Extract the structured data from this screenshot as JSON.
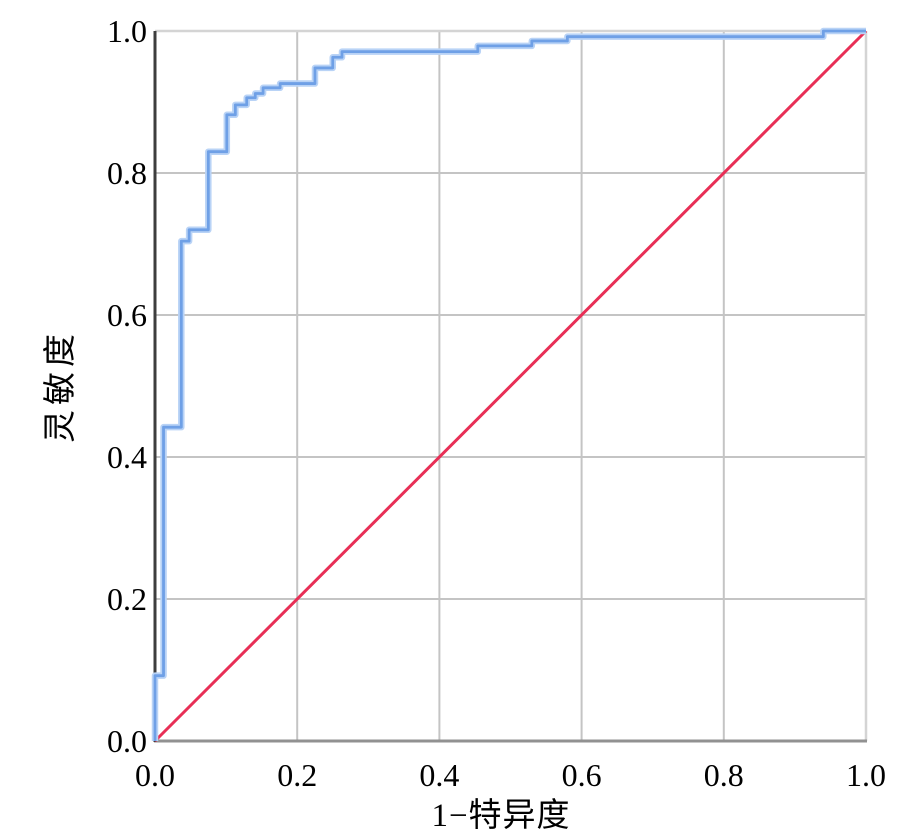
{
  "chart_data": {
    "type": "line",
    "title": "",
    "xlabel": "1−特异度",
    "ylabel": "灵敏度",
    "xlim": [
      0.0,
      1.0
    ],
    "ylim": [
      0.0,
      1.0
    ],
    "xticks": [
      0.0,
      0.2,
      0.4,
      0.6,
      0.8,
      1.0
    ],
    "yticks": [
      0.0,
      0.2,
      0.4,
      0.6,
      0.8,
      1.0
    ],
    "xtick_labels": [
      "0.0",
      "0.2",
      "0.4",
      "0.6",
      "0.8",
      "1.0"
    ],
    "ytick_labels": [
      "0.0",
      "0.2",
      "0.4",
      "0.6",
      "0.8",
      "1.0"
    ],
    "grid": true,
    "legend_position": "none",
    "series": [
      {
        "name": "roc-curve",
        "style": "step",
        "color": "#6fa0e6",
        "halo_color": "#b9d3f6",
        "points": [
          [
            0.0,
            0.0
          ],
          [
            0.0,
            0.092
          ],
          [
            0.012,
            0.092
          ],
          [
            0.012,
            0.442
          ],
          [
            0.037,
            0.442
          ],
          [
            0.037,
            0.704
          ],
          [
            0.048,
            0.704
          ],
          [
            0.048,
            0.72
          ],
          [
            0.075,
            0.72
          ],
          [
            0.075,
            0.83
          ],
          [
            0.101,
            0.83
          ],
          [
            0.101,
            0.882
          ],
          [
            0.113,
            0.882
          ],
          [
            0.113,
            0.896
          ],
          [
            0.129,
            0.896
          ],
          [
            0.129,
            0.906
          ],
          [
            0.141,
            0.906
          ],
          [
            0.141,
            0.912
          ],
          [
            0.152,
            0.912
          ],
          [
            0.152,
            0.92
          ],
          [
            0.176,
            0.92
          ],
          [
            0.176,
            0.926
          ],
          [
            0.225,
            0.926
          ],
          [
            0.225,
            0.948
          ],
          [
            0.25,
            0.948
          ],
          [
            0.25,
            0.963
          ],
          [
            0.263,
            0.963
          ],
          [
            0.263,
            0.971
          ],
          [
            0.454,
            0.971
          ],
          [
            0.454,
            0.979
          ],
          [
            0.53,
            0.979
          ],
          [
            0.53,
            0.986
          ],
          [
            0.58,
            0.986
          ],
          [
            0.58,
            0.992
          ],
          [
            0.94,
            0.992
          ],
          [
            0.94,
            1.0
          ],
          [
            1.0,
            1.0
          ]
        ]
      },
      {
        "name": "reference-diagonal",
        "style": "line",
        "color": "#e82f56",
        "points": [
          [
            0.0,
            0.0
          ],
          [
            1.0,
            1.0
          ]
        ]
      }
    ],
    "colors": {
      "background": "#ffffff",
      "gridline": "#c4c4c4",
      "left_axis": "#3d3d3d",
      "bottom_axis": "#919191",
      "top_border": "#d4d4d4",
      "right_border": "#d4d4d4",
      "tick_text": "#000000"
    }
  }
}
